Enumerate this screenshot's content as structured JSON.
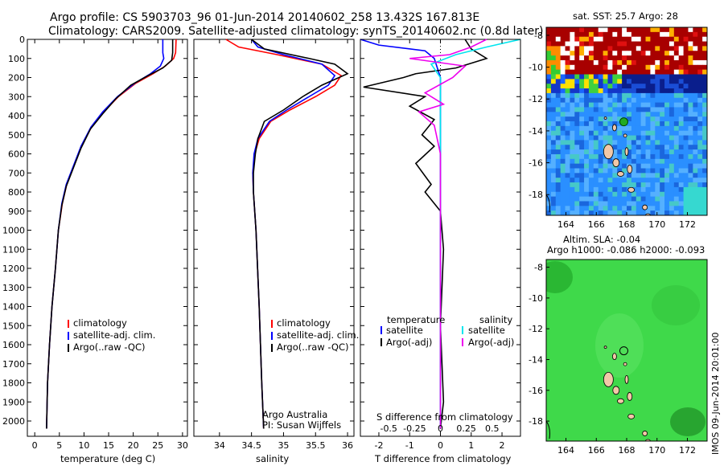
{
  "header": {
    "line1": "Argo profile: CS 5903703_96 01-Jun-2014 20140602_258 13.432S 167.813E",
    "line2": "Climatology: CARS2009. Satellite-adjusted climatology: synTS_20140602.nc (0.8d later)"
  },
  "colors": {
    "climatology": "#ff0000",
    "satellite": "#0000ff",
    "argo": "#000000",
    "sat_salinity": "#00e5ee",
    "argo_salinity": "#ee00ee"
  },
  "chart_data": [
    {
      "type": "line",
      "name": "temperature-profile",
      "xlabel": "temperature (deg C)",
      "xlim": [
        -1.5,
        31
      ],
      "ylim": [
        2080,
        0
      ],
      "xticks": [
        0,
        5,
        10,
        15,
        20,
        25,
        30
      ],
      "yticks": [
        0,
        100,
        200,
        300,
        400,
        500,
        600,
        700,
        800,
        900,
        1000,
        1100,
        1200,
        1300,
        1400,
        1500,
        1600,
        1700,
        1800,
        1900,
        2000
      ],
      "legend": [
        "climatology",
        "satellite-adj. clim.",
        "Argo(..raw -QC)"
      ],
      "series": [
        {
          "name": "climatology",
          "color": "#ff0000",
          "x": [
            28.7,
            28.6,
            28.2,
            26.5,
            24.0,
            20.5,
            17.0,
            14.0,
            11.5,
            9.5,
            8.0,
            6.5,
            5.6,
            4.8,
            4.2,
            3.5,
            3.0,
            2.6,
            2.4
          ],
          "y": [
            0,
            70,
            100,
            140,
            180,
            230,
            300,
            380,
            460,
            560,
            660,
            760,
            860,
            1000,
            1200,
            1400,
            1600,
            1800,
            2040
          ]
        },
        {
          "name": "satellite-adj. clim.",
          "color": "#0000ff",
          "x": [
            26.0,
            26.0,
            26.2,
            25.5,
            23.5,
            20.3,
            16.8,
            13.8,
            11.4,
            9.4,
            7.9,
            6.4,
            5.5,
            4.8,
            4.2,
            3.5,
            3.0,
            2.6,
            2.4
          ],
          "y": [
            0,
            70,
            100,
            140,
            180,
            230,
            300,
            380,
            460,
            560,
            660,
            760,
            860,
            1000,
            1200,
            1400,
            1600,
            1800,
            2040
          ]
        },
        {
          "name": "Argo(..raw -QC)",
          "color": "#000000",
          "x": [
            28.0,
            28.0,
            27.8,
            26.0,
            23.0,
            19.5,
            16.5,
            13.8,
            11.3,
            9.4,
            7.9,
            6.4,
            5.5,
            4.8,
            4.2,
            3.5,
            3.0,
            2.6,
            2.4
          ],
          "y": [
            0,
            70,
            110,
            150,
            190,
            240,
            310,
            390,
            470,
            570,
            670,
            770,
            870,
            1000,
            1200,
            1400,
            1600,
            1800,
            2040
          ]
        }
      ]
    },
    {
      "type": "line",
      "name": "salinity-profile",
      "xlabel": "salinity",
      "xlim": [
        33.6,
        36.1
      ],
      "ylim": [
        2080,
        0
      ],
      "xticks": [
        34,
        34.5,
        35,
        35.5,
        36
      ],
      "legend": [
        "climatology",
        "satellite-adj. clim.",
        "Argo(..raw -QC)"
      ],
      "annotation": [
        "Argo Australia",
        "PI: Susan Wijffels"
      ],
      "series": [
        {
          "name": "climatology",
          "color": "#ff0000",
          "x": [
            34.1,
            34.3,
            34.9,
            35.6,
            35.9,
            35.8,
            35.5,
            35.1,
            34.8,
            34.62,
            34.55,
            34.52,
            34.53,
            34.57,
            34.62,
            34.66,
            34.69
          ],
          "y": [
            0,
            40,
            80,
            130,
            190,
            240,
            300,
            370,
            430,
            520,
            600,
            700,
            800,
            1000,
            1400,
            1800,
            2040
          ]
        },
        {
          "name": "satellite-adj. clim.",
          "color": "#0000ff",
          "x": [
            34.5,
            34.6,
            35.0,
            35.6,
            35.8,
            35.7,
            35.4,
            35.05,
            34.78,
            34.6,
            34.54,
            34.52,
            34.53,
            34.57,
            34.62,
            34.66,
            34.69
          ],
          "y": [
            0,
            40,
            80,
            130,
            190,
            240,
            300,
            370,
            430,
            520,
            600,
            700,
            800,
            1000,
            1400,
            1800,
            2040
          ]
        },
        {
          "name": "Argo(..raw -QC)",
          "color": "#000000",
          "x": [
            34.5,
            34.7,
            35.4,
            35.8,
            36.0,
            35.6,
            35.3,
            35.0,
            34.7,
            34.6,
            34.56,
            34.53,
            34.53,
            34.57,
            34.62,
            34.66,
            34.69
          ],
          "y": [
            0,
            50,
            100,
            130,
            180,
            240,
            300,
            370,
            430,
            520,
            600,
            700,
            800,
            1000,
            1400,
            1800,
            2040
          ]
        }
      ]
    },
    {
      "type": "line",
      "name": "difference-profile",
      "xlabel": "T difference from climatology",
      "xlabel2": "S difference from climatology",
      "xlim": [
        -2.6,
        2.6
      ],
      "ylim": [
        2080,
        0
      ],
      "xticks": [
        -2,
        -1,
        0,
        1,
        2
      ],
      "xticks2": [
        "-0.5",
        "-0.25",
        "0",
        "0.25",
        "0.5"
      ],
      "legend_temperature_title": "temperature",
      "legend_salinity_title": "salinity",
      "legend": [
        "satellite",
        "Argo(-adj)",
        "satellite",
        "Argo(-adj)"
      ],
      "series": [
        {
          "name": "satellite",
          "color": "#0000ff",
          "x": [
            -2.6,
            -2.0,
            -0.5,
            -0.2,
            0.0,
            0.0,
            0.0,
            0.0
          ],
          "y": [
            0,
            30,
            60,
            100,
            200,
            400,
            1000,
            2040
          ]
        },
        {
          "name": "Argo(-adj)",
          "color": "#000000",
          "x": [
            0.8,
            1.0,
            1.5,
            0.5,
            -0.8,
            -1.2,
            -2.5,
            -0.5,
            -1.0,
            -0.2,
            -0.6,
            -0.2,
            -0.8,
            -0.3,
            -0.5,
            0.0,
            0.1,
            0.0,
            0.1,
            0.0
          ],
          "y": [
            0,
            50,
            100,
            150,
            180,
            200,
            250,
            300,
            350,
            420,
            500,
            560,
            650,
            760,
            800,
            900,
            1100,
            1500,
            1900,
            2040
          ]
        },
        {
          "name": "satellite",
          "color": "#00e5ee",
          "x": [
            2.6,
            1.5,
            0.5,
            -0.3,
            0.0,
            0.0,
            0.0,
            0.0
          ],
          "y": [
            0,
            40,
            80,
            130,
            200,
            400,
            1000,
            2040
          ]
        },
        {
          "name": "Argo(-adj)",
          "color": "#ee00ee",
          "x": [
            1.5,
            1.0,
            0.3,
            -1.0,
            0.8,
            0.4,
            -0.5,
            0.1,
            -0.7,
            -0.2,
            0.0,
            0.0,
            0.0
          ],
          "y": [
            0,
            40,
            80,
            100,
            140,
            200,
            280,
            340,
            380,
            450,
            600,
            1000,
            2040
          ]
        }
      ]
    },
    {
      "type": "heatmap",
      "name": "sst-map",
      "title": "sat. SST: 25.7 Argo: 28",
      "xlim": [
        162.7,
        173.3
      ],
      "ylim": [
        -19.3,
        -7.5
      ],
      "xticks": [
        164,
        166,
        168,
        170,
        172
      ],
      "yticks": [
        -8,
        -10,
        -12,
        -14,
        -16,
        -18
      ],
      "argo_position": {
        "lon": 167.813,
        "lat": -13.432
      }
    },
    {
      "type": "heatmap",
      "name": "sla-map",
      "title_line1": "Altim. SLA: -0.04",
      "title_line2": "Argo h1000: -0.086 h2000: -0.093",
      "xlim": [
        162.7,
        173.3
      ],
      "ylim": [
        -19.3,
        -7.5
      ],
      "xticks": [
        164,
        166,
        168,
        170,
        172
      ],
      "yticks": [
        -8,
        -10,
        -12,
        -14,
        -16,
        -18
      ],
      "argo_position": {
        "lon": 167.813,
        "lat": -13.432
      }
    }
  ],
  "footer": {
    "credit": "IMOS 09-Jun-2014 20:01:00"
  }
}
